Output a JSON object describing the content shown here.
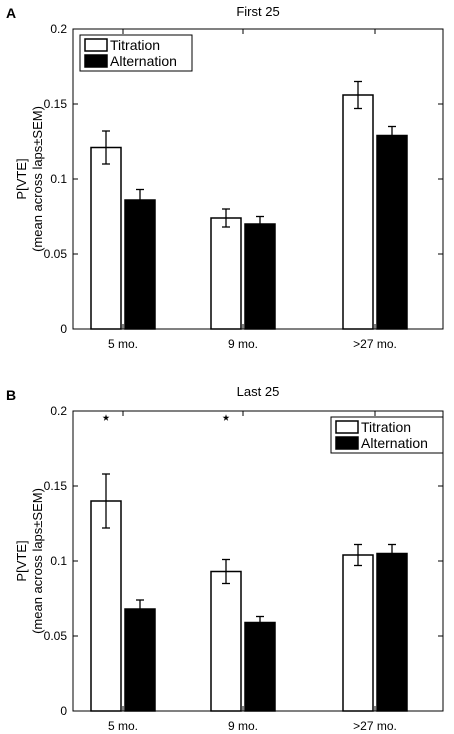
{
  "chart_data": [
    {
      "type": "bar",
      "panel_label": "A",
      "title": "First 25",
      "ylabel": [
        "P[VTE]",
        "(mean across laps±SEM)"
      ],
      "xlabel": "",
      "categories": [
        "5 mo.",
        "9 mo.",
        ">27 mo."
      ],
      "ylim": [
        0,
        0.2
      ],
      "yticks": [
        0,
        0.05,
        0.1,
        0.15,
        0.2
      ],
      "ytick_labels": [
        "0",
        "0.05",
        "0.1",
        "0.15",
        "0.2"
      ],
      "legend_position": "top-left",
      "series": [
        {
          "name": "Titration",
          "fill": "#ffffff",
          "values": [
            0.121,
            0.074,
            0.156
          ],
          "errors": [
            0.011,
            0.006,
            0.009
          ]
        },
        {
          "name": "Alternation",
          "fill": "#000000",
          "values": [
            0.086,
            0.07,
            0.129
          ],
          "errors": [
            0.007,
            0.005,
            0.006
          ]
        }
      ],
      "annotations": []
    },
    {
      "type": "bar",
      "panel_label": "B",
      "title": "Last 25",
      "ylabel": [
        "P[VTE]",
        "(mean across laps±SEM)"
      ],
      "xlabel": "",
      "categories": [
        "5 mo.",
        "9 mo.",
        ">27 mo."
      ],
      "ylim": [
        0,
        0.2
      ],
      "yticks": [
        0,
        0.05,
        0.1,
        0.15,
        0.2
      ],
      "ytick_labels": [
        "0",
        "0.05",
        "0.1",
        "0.15",
        "0.2"
      ],
      "legend_position": "top-right",
      "series": [
        {
          "name": "Titration",
          "fill": "#ffffff",
          "values": [
            0.14,
            0.093,
            0.104
          ],
          "errors": [
            0.018,
            0.008,
            0.007
          ]
        },
        {
          "name": "Alternation",
          "fill": "#000000",
          "values": [
            0.068,
            0.059,
            0.105
          ],
          "errors": [
            0.006,
            0.004,
            0.006
          ]
        }
      ],
      "annotations": [
        {
          "text": "⋆",
          "category": "5 mo.",
          "y": 0.197
        },
        {
          "text": "⋆",
          "category": "9 mo.",
          "y": 0.197
        }
      ]
    }
  ]
}
